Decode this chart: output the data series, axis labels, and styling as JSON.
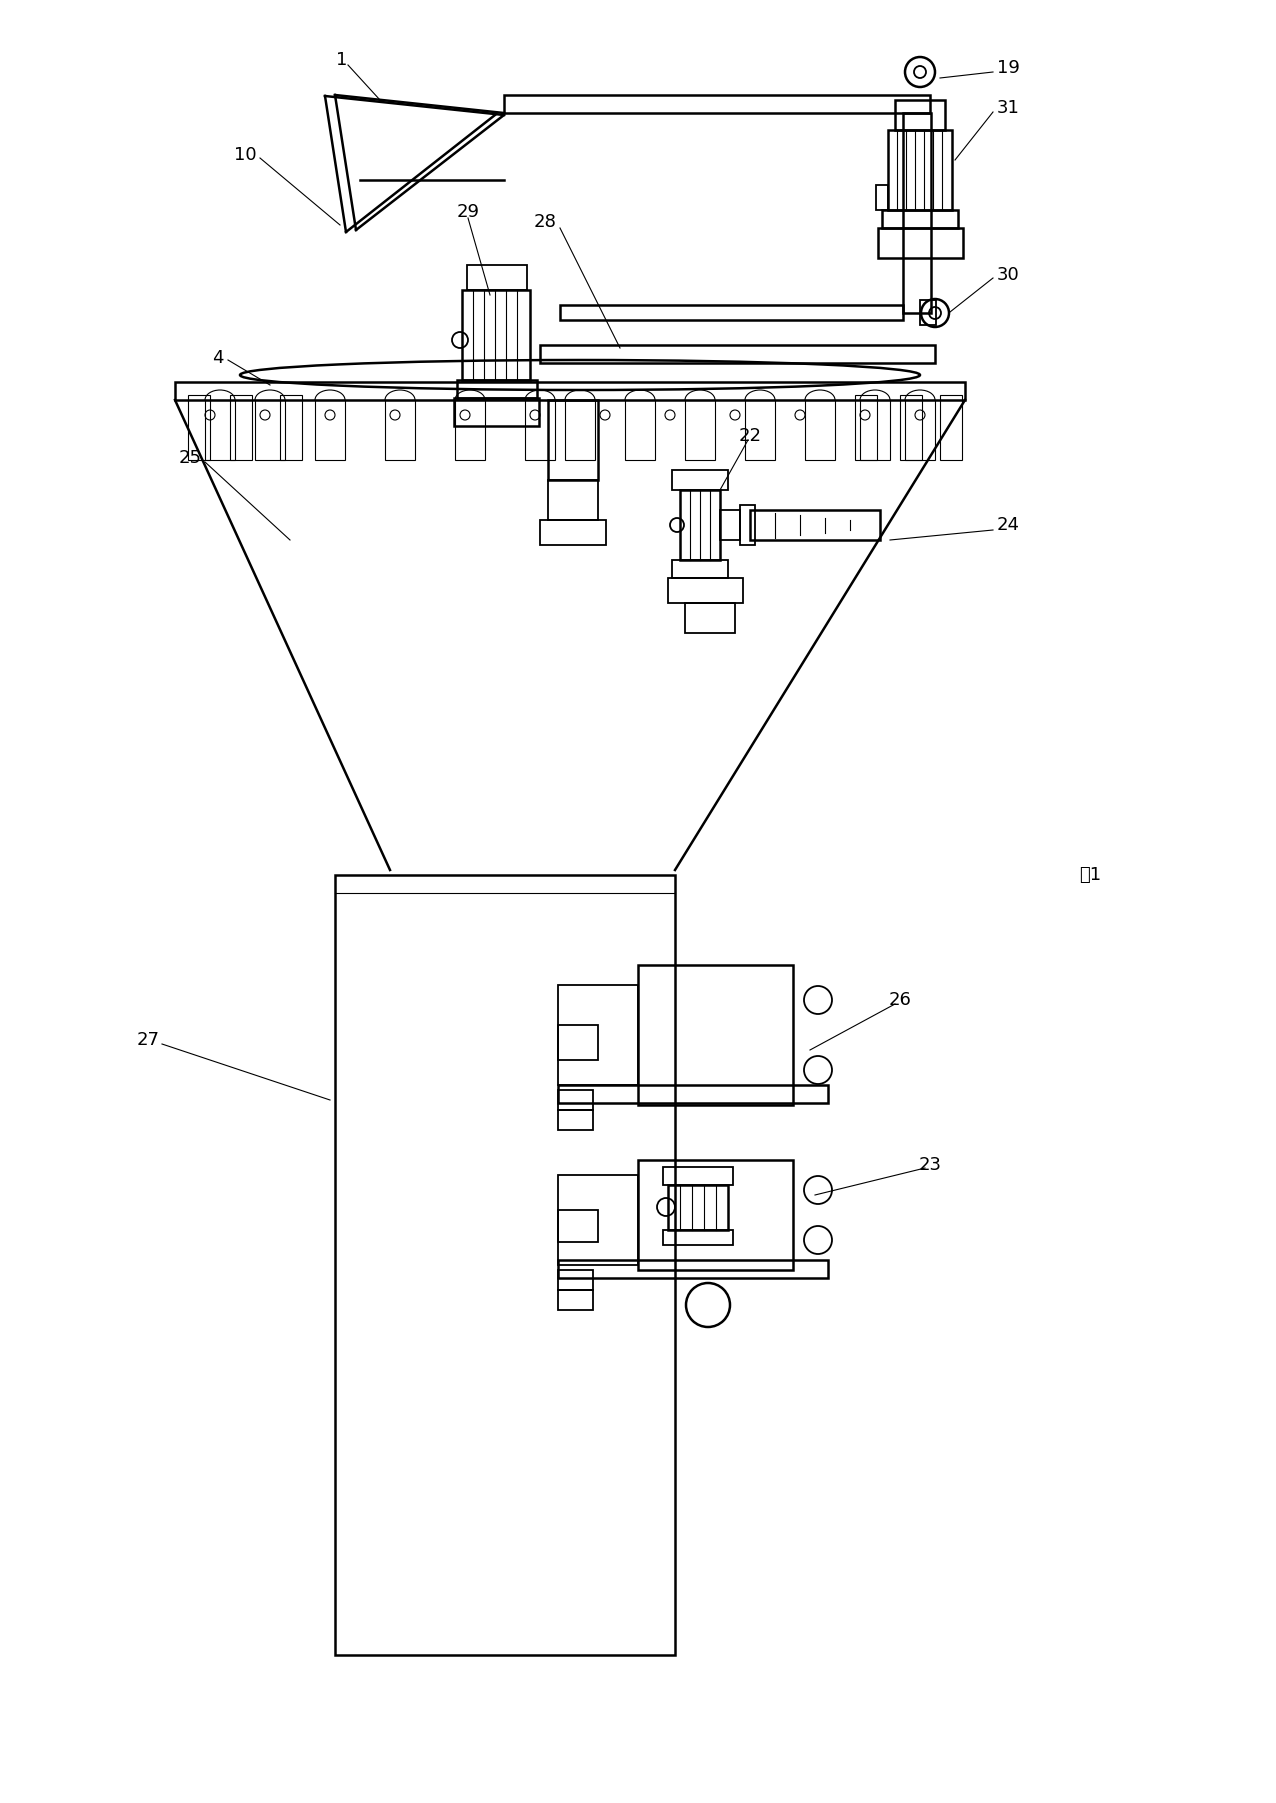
{
  "bg_color": "#ffffff",
  "lc": "#000000",
  "lw": 1.3,
  "lw2": 1.8,
  "lw3": 0.8
}
